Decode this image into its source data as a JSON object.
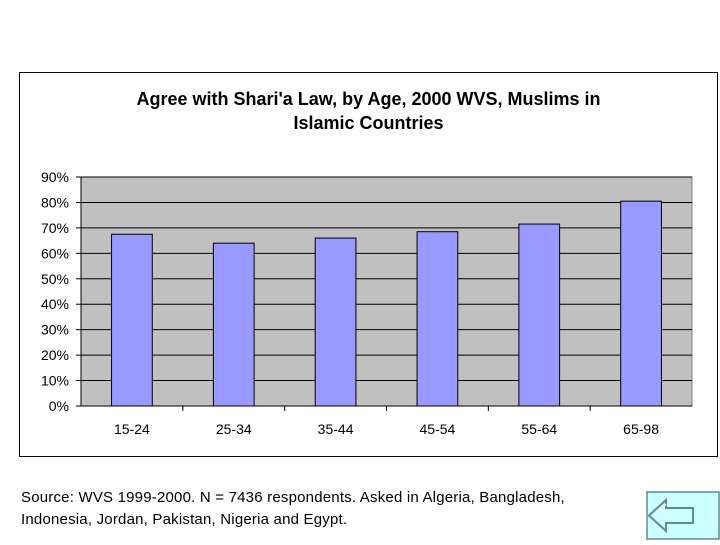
{
  "chart_data": {
    "type": "bar",
    "title_lines": [
      "Agree with Shari'a Law, by Age, 2000 WVS, Muslims in",
      "Islamic Countries"
    ],
    "categories": [
      "15-24",
      "25-34",
      "35-44",
      "45-54",
      "55-64",
      "65-98"
    ],
    "values": [
      67.5,
      64,
      66,
      68.5,
      71.5,
      80.5
    ],
    "y_ticks": [
      "0%",
      "10%",
      "20%",
      "30%",
      "40%",
      "50%",
      "60%",
      "70%",
      "80%",
      "90%"
    ],
    "ylim": [
      0,
      90
    ],
    "grid": true,
    "legend": "none",
    "colors": {
      "bar": "#9999ff",
      "plot_background": "#c0c0c0",
      "gridline": "#000000",
      "bar_border": "#000000"
    }
  },
  "source_note": "Source: WVS 1999-2000. N = 7436 respondents. Asked in Algeria, Bangladesh, Indonesia, Jordan, Pakistan, Nigeria and Egypt.",
  "nav": {
    "back_icon": "left-arrow-icon",
    "colors": {
      "fill": "#ccffff",
      "stroke": "#5f8c8c"
    }
  }
}
